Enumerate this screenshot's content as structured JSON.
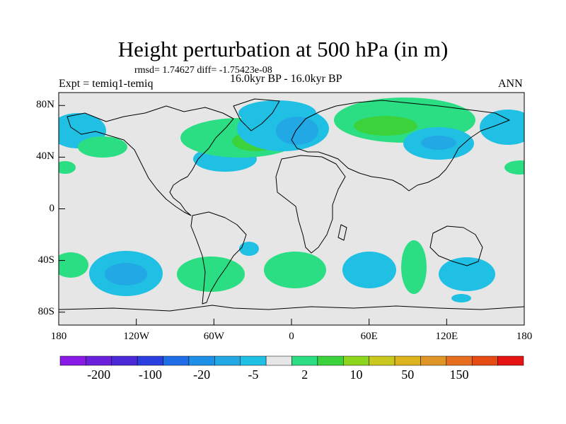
{
  "header": {
    "title": "Height perturbation at 500 hPa (in m)",
    "stats": "rmsd= 1.74627 diff= -1.75423e-08",
    "experiment": "Expt = temiq1-temiq",
    "period": "16.0kyr BP - 16.0kyr BP",
    "season": "ANN"
  },
  "axes": {
    "y_ticks": [
      {
        "label": "80N",
        "lat": 80
      },
      {
        "label": "40N",
        "lat": 40
      },
      {
        "label": "0",
        "lat": 0
      },
      {
        "label": "40S",
        "lat": -40
      },
      {
        "label": "80S",
        "lat": -80
      }
    ],
    "x_ticks": [
      {
        "label": "180",
        "lon": -180
      },
      {
        "label": "120W",
        "lon": -120
      },
      {
        "label": "60W",
        "lon": -60
      },
      {
        "label": "0",
        "lon": 0
      },
      {
        "label": "60E",
        "lon": 60
      },
      {
        "label": "120E",
        "lon": 120
      },
      {
        "label": "180",
        "lon": 180
      }
    ],
    "lon_range": [
      -180,
      180
    ],
    "lat_range": [
      -90,
      90
    ]
  },
  "colorbar": {
    "colors": [
      "#8a1ae6",
      "#6a20dc",
      "#4b28d8",
      "#2b3ee0",
      "#1f6ee8",
      "#1e90e8",
      "#22a8e4",
      "#1fc0e4",
      "#e6e6e6",
      "#2bde84",
      "#3cd23c",
      "#8ed61e",
      "#c8c81e",
      "#dcb41e",
      "#e09626",
      "#e66e1e",
      "#e64b14",
      "#e61414"
    ],
    "labels": [
      {
        "text": "-200",
        "index": 1
      },
      {
        "text": "-100",
        "index": 3
      },
      {
        "text": "-20",
        "index": 5
      },
      {
        "text": "-5",
        "index": 7
      },
      {
        "text": "2",
        "index": 9
      },
      {
        "text": "10",
        "index": 11
      },
      {
        "text": "50",
        "index": 13
      },
      {
        "text": "150",
        "index": 15
      }
    ]
  },
  "field_colors": {
    "neutral": "#e6e6e6",
    "positive_light": "#2bde84",
    "positive_strong": "#3cd23c",
    "negative_light": "#1fc0e4",
    "negative_mid": "#22a8e4",
    "negative_strong": "#1e90e8"
  }
}
